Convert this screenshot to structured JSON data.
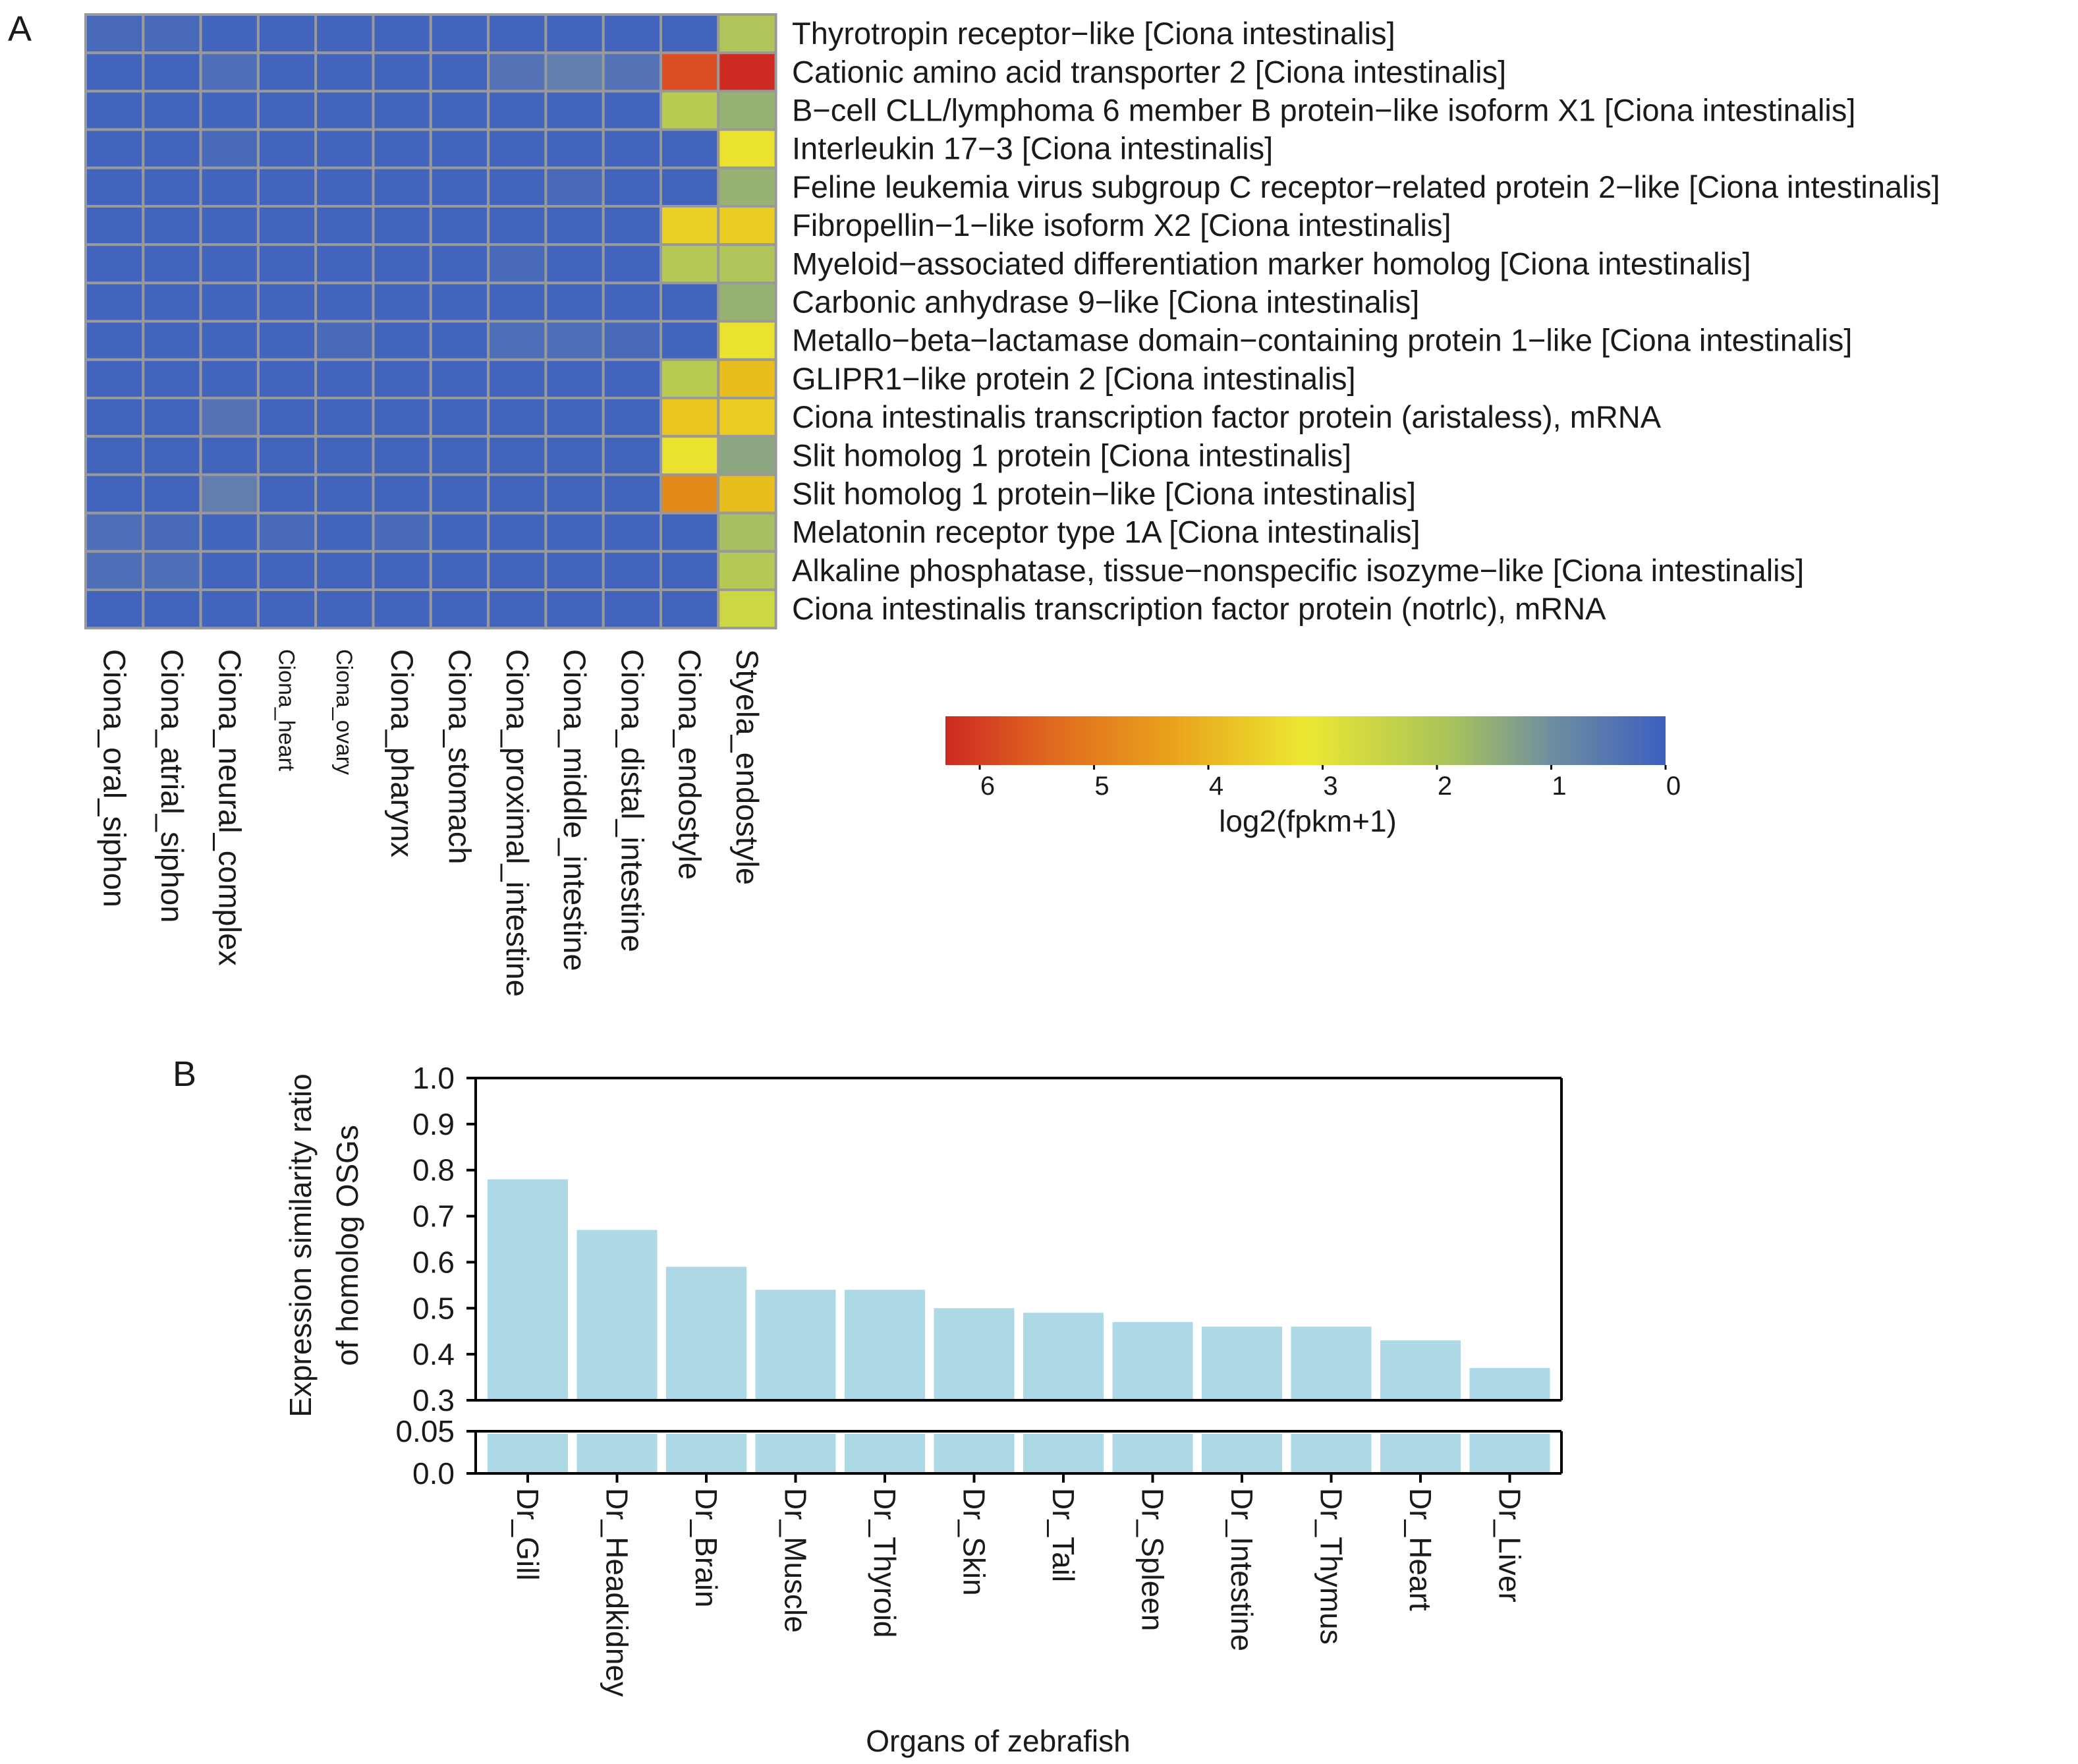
{
  "panel_labels": {
    "a": "A",
    "b": "B"
  },
  "colors": {
    "low": "#3d5fbf",
    "mid_low": "#7fa08a",
    "mid": "#a9c35a",
    "mid_high": "#e9e63a",
    "high_a": "#e8c51f",
    "high_b": "#e38a1a",
    "max": "#cd2a22",
    "bar": "#add8e6",
    "grid_line": "#999999"
  },
  "chart_data": [
    {
      "type": "heatmap",
      "title": "",
      "columns": [
        "Ciona_oral_siphon",
        "Ciona_atrial_siphon",
        "Ciona_neural_complex",
        "Ciona_heart",
        "Ciona_ovary",
        "Ciona_pharynx",
        "Ciona_stomach",
        "Ciona_proximal_intestine",
        "Ciona_middle_intestine",
        "Ciona_distal_intestine",
        "Ciona_endostyle",
        "Styela_endostyle"
      ],
      "rows": [
        "Thyrotropin receptor−like [Ciona intestinalis]",
        "Cationic amino acid transporter 2 [Ciona intestinalis]",
        "B−cell CLL/lymphoma 6 member B protein−like isoform X1 [Ciona intestinalis]",
        "Interleukin 17−3 [Ciona intestinalis]",
        "Feline leukemia virus subgroup C receptor−related protein 2−like [Ciona intestinalis]",
        "Fibropellin−1−like isoform X2 [Ciona intestinalis]",
        "Myeloid−associated differentiation marker homolog [Ciona intestinalis]",
        "Carbonic anhydrase 9−like [Ciona intestinalis]",
        "Metallo−beta−lactamase domain−containing protein 1−like [Ciona intestinalis]",
        "GLIPR1−like protein 2 [Ciona intestinalis]",
        "Ciona intestinalis transcription factor protein (aristaless), mRNA",
        "Slit homolog 1 protein [Ciona intestinalis]",
        "Slit homolog 1 protein−like [Ciona intestinalis]",
        "Melatonin receptor type 1A [Ciona intestinalis]",
        "Alkaline phosphatase, tissue−nonspecific isozyme−like [Ciona intestinalis]",
        "Ciona intestinalis transcription factor protein (notrlc), mRNA"
      ],
      "values": [
        [
          0.2,
          0.2,
          0.1,
          0.1,
          0.1,
          0.1,
          0.1,
          0.1,
          0.1,
          0.1,
          0.1,
          2.0
        ],
        [
          0.1,
          0.1,
          0.3,
          0.1,
          0.1,
          0.1,
          0.1,
          0.4,
          0.6,
          0.4,
          5.3,
          6.0
        ],
        [
          0.1,
          0.1,
          0.1,
          0.1,
          0.1,
          0.1,
          0.1,
          0.1,
          0.1,
          0.1,
          2.2,
          1.5
        ],
        [
          0.1,
          0.1,
          0.2,
          0.1,
          0.1,
          0.1,
          0.1,
          0.1,
          0.1,
          0.1,
          0.1,
          3.1
        ],
        [
          0.1,
          0.1,
          0.1,
          0.1,
          0.1,
          0.1,
          0.1,
          0.1,
          0.2,
          0.1,
          0.1,
          1.5
        ],
        [
          0.1,
          0.1,
          0.1,
          0.1,
          0.1,
          0.1,
          0.1,
          0.1,
          0.1,
          0.1,
          3.4,
          3.5
        ],
        [
          0.1,
          0.1,
          0.1,
          0.1,
          0.1,
          0.1,
          0.1,
          0.2,
          0.1,
          0.1,
          2.1,
          2.0
        ],
        [
          0.1,
          0.1,
          0.1,
          0.1,
          0.1,
          0.1,
          0.1,
          0.1,
          0.1,
          0.1,
          0.1,
          1.5
        ],
        [
          0.1,
          0.1,
          0.1,
          0.1,
          0.2,
          0.1,
          0.1,
          0.3,
          0.3,
          0.2,
          0.1,
          3.1
        ],
        [
          0.1,
          0.1,
          0.1,
          0.1,
          0.1,
          0.1,
          0.1,
          0.1,
          0.1,
          0.1,
          2.2,
          3.7
        ],
        [
          0.1,
          0.1,
          0.4,
          0.1,
          0.1,
          0.1,
          0.1,
          0.1,
          0.1,
          0.1,
          3.6,
          3.5
        ],
        [
          0.1,
          0.1,
          0.1,
          0.1,
          0.1,
          0.1,
          0.1,
          0.1,
          0.1,
          0.1,
          3.1,
          1.3
        ],
        [
          0.1,
          0.1,
          0.6,
          0.1,
          0.1,
          0.1,
          0.1,
          0.1,
          0.1,
          0.1,
          4.5,
          3.7
        ],
        [
          0.3,
          0.2,
          0.1,
          0.2,
          0.1,
          0.2,
          0.1,
          0.1,
          0.1,
          0.1,
          0.1,
          1.8
        ],
        [
          0.3,
          0.3,
          0.1,
          0.1,
          0.1,
          0.1,
          0.1,
          0.1,
          0.1,
          0.1,
          0.1,
          2.1
        ],
        [
          0.1,
          0.1,
          0.1,
          0.1,
          0.1,
          0.1,
          0.1,
          0.1,
          0.1,
          0.1,
          0.1,
          2.5
        ]
      ],
      "colorbar": {
        "label": "log2(fpkm+1)",
        "ticks": [
          6,
          5,
          4,
          3,
          2,
          1,
          0
        ],
        "range": [
          0,
          6.3
        ]
      }
    },
    {
      "type": "bar",
      "title": "",
      "categories": [
        "Dr_Gill",
        "Dr_Headkidney",
        "Dr_Brain",
        "Dr_Muscle",
        "Dr_Thyroid",
        "Dr_Skin",
        "Dr_Tail",
        "Dr_Spleen",
        "Dr_Intestine",
        "Dr_Thymus",
        "Dr_Heart",
        "Dr_Liver"
      ],
      "values": [
        0.78,
        0.67,
        0.59,
        0.54,
        0.54,
        0.5,
        0.49,
        0.47,
        0.46,
        0.46,
        0.43,
        0.37
      ],
      "xlabel": "Organs of zebrafish",
      "ylabel_lines": [
        "Expression similarity ratio",
        "of homolog OSGs"
      ],
      "ylim": [
        0.3,
        1.0
      ],
      "yticks": [
        "1.0",
        "0.9",
        "0.8",
        "0.7",
        "0.6",
        "0.5",
        "0.4",
        "0.3"
      ],
      "broken_axis": {
        "lower_ticks": [
          "0.05",
          "0.0"
        ],
        "lower_range": [
          0,
          0.05
        ]
      }
    }
  ]
}
